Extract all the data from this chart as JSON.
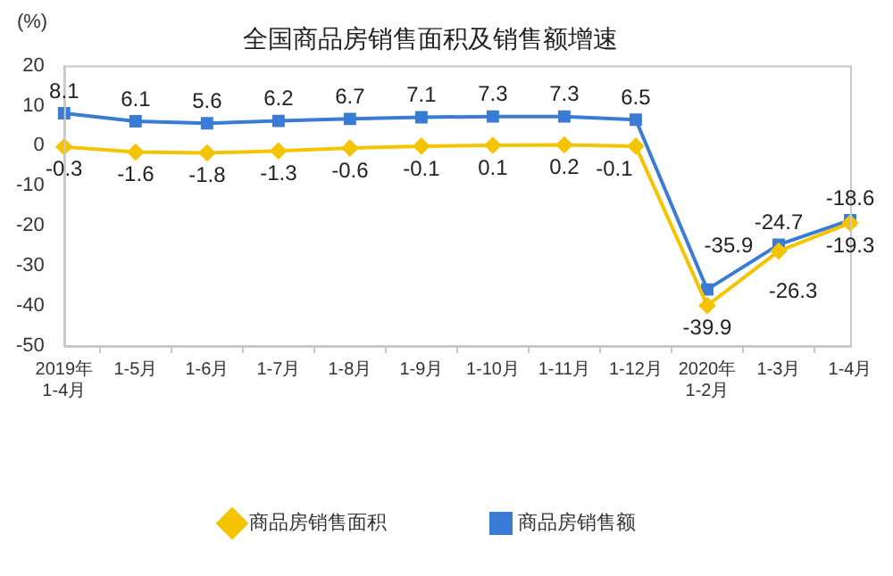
{
  "chart_data": {
    "type": "line",
    "title": "全国商品房销售面积及销售额增速",
    "ylabel": "(%)",
    "categories": [
      "2019年\n1-4月",
      "1-5月",
      "1-6月",
      "1-7月",
      "1-8月",
      "1-9月",
      "1-10月",
      "1-11月",
      "1-12月",
      "2020年\n1-2月",
      "1-3月",
      "1-4月"
    ],
    "series": [
      {
        "name": "商品房销售面积",
        "color": "#f5c400",
        "marker": "diamond",
        "values": [
          -0.3,
          -1.6,
          -1.8,
          -1.3,
          -0.6,
          -0.1,
          0.1,
          0.2,
          -0.1,
          -39.9,
          -26.3,
          -19.3
        ]
      },
      {
        "name": "商品房销售额",
        "color": "#3a7bd5",
        "marker": "square",
        "values": [
          8.1,
          6.1,
          5.6,
          6.2,
          6.7,
          7.1,
          7.3,
          7.3,
          6.5,
          -35.9,
          -24.7,
          -18.6
        ]
      }
    ],
    "ylim": [
      -50,
      20
    ],
    "yticks": [
      -50,
      -40,
      -30,
      -20,
      -10,
      0,
      10,
      20
    ],
    "grid": false,
    "legend": "bottom",
    "data_labels": true,
    "line_style": "solid"
  }
}
